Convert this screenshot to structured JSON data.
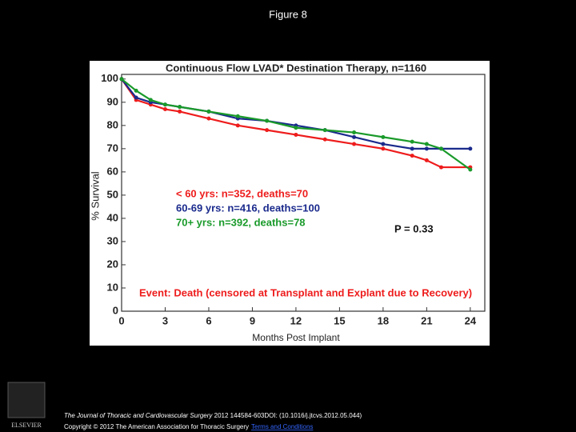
{
  "page": {
    "title": "Figure 8",
    "journal": "The Journal of Thoracic and Cardiovascular Surgery",
    "citation": " 2012 144584-603DOI: (10.1016/j.jtcvs.2012.05.044)",
    "copyright": "Copyright © 2012 The American Association for Thoracic Surgery",
    "link": "Terms and Conditions",
    "logo": "ELSEVIER"
  },
  "chart_data": {
    "type": "line",
    "title": "Continuous Flow LVAD* Destination Therapy, n=1160",
    "x_label": "Months Post Implant",
    "y_label": "% Survival",
    "annotations": [
      "P  = 0.33",
      "Event:  Death (censored at Transplant and Explant due to Recovery)"
    ],
    "x": [
      0,
      1,
      2,
      3,
      4,
      6,
      8,
      10,
      12,
      14,
      16,
      18,
      20,
      21,
      22,
      24
    ],
    "series": [
      {
        "name": "< 60 yrs:   n=352, deaths=70",
        "color": "#ee1c1c",
        "values": [
          100,
          91,
          89,
          87,
          86,
          83,
          80,
          78,
          76,
          74,
          72,
          70,
          67,
          65,
          62,
          62
        ]
      },
      {
        "name": "60-69 yrs:  n=416, deaths=100",
        "color": "#1a2a8c",
        "values": [
          100,
          92,
          90,
          89,
          88,
          86,
          83,
          82,
          80,
          78,
          75,
          72,
          70,
          70,
          70,
          70
        ]
      },
      {
        "name": "70+ yrs:  n=392, deaths=78",
        "color": "#1a9a2a",
        "values": [
          100,
          95,
          91,
          89,
          88,
          86,
          84,
          82,
          79,
          78,
          77,
          75,
          73,
          72,
          70,
          61
        ]
      }
    ],
    "xlim": [
      0,
      25
    ],
    "ylim": [
      0,
      102
    ],
    "xticks": [
      0,
      3,
      6,
      9,
      12,
      15,
      18,
      21,
      24
    ],
    "yticks": [
      0,
      10,
      20,
      30,
      40,
      50,
      60,
      70,
      80,
      90,
      100
    ]
  }
}
